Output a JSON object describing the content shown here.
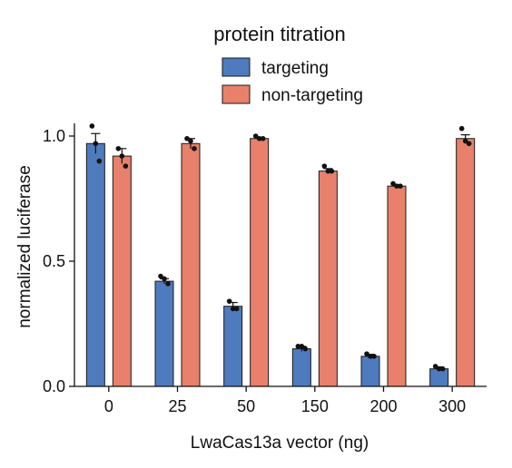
{
  "chart_data": {
    "type": "bar",
    "title": "",
    "legend_title": "protein titration",
    "legend_position": "top",
    "xlabel": "LwaCas13a vector (ng)",
    "ylabel": "normalized luciferase",
    "categories": [
      "0",
      "25",
      "50",
      "150",
      "200",
      "300"
    ],
    "ylim": [
      0,
      1.0
    ],
    "yticks": [
      0.0,
      0.5,
      1.0
    ],
    "ytick_labels": [
      "0.0",
      "0.5",
      "1.0"
    ],
    "grid": false,
    "error_bars": true,
    "series": [
      {
        "name": "targeting",
        "color": "#4e7bbe",
        "values": [
          0.97,
          0.42,
          0.32,
          0.15,
          0.12,
          0.07
        ],
        "errors": [
          0.04,
          0.01,
          0.015,
          0.01,
          0.008,
          0.008
        ],
        "points": [
          [
            1.04,
            0.97,
            0.9
          ],
          [
            0.44,
            0.43,
            0.41
          ],
          [
            0.34,
            0.31,
            0.31
          ],
          [
            0.16,
            0.16,
            0.15
          ],
          [
            0.13,
            0.12,
            0.12
          ],
          [
            0.08,
            0.07,
            0.07
          ]
        ]
      },
      {
        "name": "non-targeting",
        "color": "#e8806b",
        "values": [
          0.92,
          0.97,
          0.99,
          0.86,
          0.8,
          0.99
        ],
        "errors": [
          0.03,
          0.02,
          0.005,
          0.01,
          0.006,
          0.015
        ],
        "points": [
          [
            0.95,
            0.92,
            0.88
          ],
          [
            0.99,
            0.98,
            0.95
          ],
          [
            1.0,
            0.99,
            0.99
          ],
          [
            0.88,
            0.86,
            0.86
          ],
          [
            0.81,
            0.8,
            0.8
          ],
          [
            1.03,
            0.98,
            0.97
          ]
        ]
      }
    ]
  }
}
